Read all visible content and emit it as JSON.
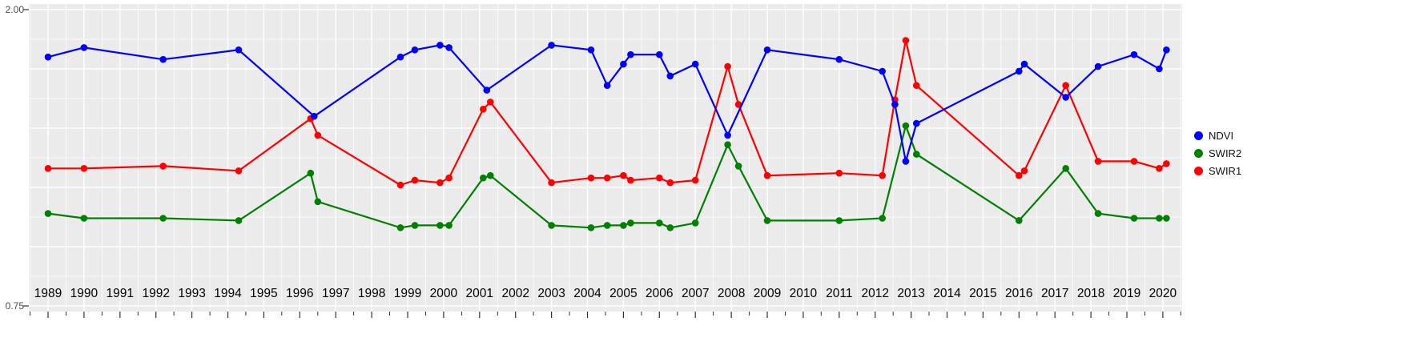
{
  "figure": {
    "background": "#FFFFFF",
    "panel_background": "#EBEBEB",
    "grid_color": "#FFFFFF",
    "tick_color": "#333333",
    "y_axis_text_color": "#4D4D4D",
    "x_axis_text_color": "#000000"
  },
  "chart_data": {
    "type": "line",
    "title": "",
    "xlabel": "",
    "ylabel": "",
    "ylim": [
      0.75,
      2.0
    ],
    "y_axis_labels": [
      "2.00",
      "0.75"
    ],
    "y_major_step": 0.25,
    "grid": true,
    "legend_position": "right",
    "x_ticks": [
      1989,
      1990,
      1991,
      1992,
      1993,
      1994,
      1995,
      1996,
      1997,
      1998,
      1999,
      2000,
      2001,
      2002,
      2003,
      2004,
      2005,
      2006,
      2007,
      2008,
      2009,
      2010,
      2011,
      2012,
      2013,
      2014,
      2015,
      2016,
      2017,
      2018,
      2019,
      2020
    ],
    "series": [
      {
        "name": "NDVI",
        "color": "#0000FF",
        "points": [
          [
            1989,
            1.8
          ],
          [
            1990,
            1.84
          ],
          [
            1992.2,
            1.79
          ],
          [
            1994.3,
            1.83
          ],
          [
            1996.4,
            1.55
          ],
          [
            1998.8,
            1.8
          ],
          [
            1999.2,
            1.83
          ],
          [
            1999.9,
            1.85
          ],
          [
            2000.15,
            1.84
          ],
          [
            2001.2,
            1.66
          ],
          [
            2003,
            1.85
          ],
          [
            2004.1,
            1.83
          ],
          [
            2004.55,
            1.68
          ],
          [
            2005,
            1.77
          ],
          [
            2005.2,
            1.81
          ],
          [
            2006,
            1.81
          ],
          [
            2006.3,
            1.72
          ],
          [
            2007,
            1.77
          ],
          [
            2007.9,
            1.47
          ],
          [
            2009,
            1.83
          ],
          [
            2011,
            1.79
          ],
          [
            2012.2,
            1.74
          ],
          [
            2012.55,
            1.6
          ],
          [
            2012.85,
            1.36
          ],
          [
            2013.15,
            1.52
          ],
          [
            2016,
            1.74
          ],
          [
            2016.15,
            1.77
          ],
          [
            2017.3,
            1.63
          ],
          [
            2018.2,
            1.76
          ],
          [
            2019.2,
            1.81
          ],
          [
            2019.9,
            1.75
          ],
          [
            2020.1,
            1.83
          ]
        ]
      },
      {
        "name": "SWIR2",
        "color": "#008000",
        "points": [
          [
            1989,
            1.14
          ],
          [
            1990,
            1.12
          ],
          [
            1992.2,
            1.12
          ],
          [
            1994.3,
            1.11
          ],
          [
            1996.3,
            1.31
          ],
          [
            1996.5,
            1.19
          ],
          [
            1998.8,
            1.08
          ],
          [
            1999.2,
            1.09
          ],
          [
            1999.9,
            1.09
          ],
          [
            2000.15,
            1.09
          ],
          [
            2001.1,
            1.29
          ],
          [
            2001.3,
            1.3
          ],
          [
            2003,
            1.09
          ],
          [
            2004.1,
            1.08
          ],
          [
            2004.55,
            1.09
          ],
          [
            2005,
            1.09
          ],
          [
            2005.2,
            1.1
          ],
          [
            2006,
            1.1
          ],
          [
            2006.3,
            1.08
          ],
          [
            2007,
            1.1
          ],
          [
            2007.9,
            1.43
          ],
          [
            2008.2,
            1.34
          ],
          [
            2009,
            1.11
          ],
          [
            2011,
            1.11
          ],
          [
            2012.2,
            1.12
          ],
          [
            2012.85,
            1.51
          ],
          [
            2013.15,
            1.39
          ],
          [
            2016,
            1.11
          ],
          [
            2017.3,
            1.33
          ],
          [
            2018.2,
            1.14
          ],
          [
            2019.2,
            1.12
          ],
          [
            2019.9,
            1.12
          ],
          [
            2020.1,
            1.12
          ]
        ]
      },
      {
        "name": "SWIR1",
        "color": "#FF0000",
        "points": [
          [
            1989,
            1.33
          ],
          [
            1990,
            1.33
          ],
          [
            1992.2,
            1.34
          ],
          [
            1994.3,
            1.32
          ],
          [
            1996.3,
            1.54
          ],
          [
            1996.5,
            1.47
          ],
          [
            1998.8,
            1.26
          ],
          [
            1999.2,
            1.28
          ],
          [
            1999.9,
            1.27
          ],
          [
            2000.15,
            1.29
          ],
          [
            2001.1,
            1.58
          ],
          [
            2001.3,
            1.61
          ],
          [
            2003,
            1.27
          ],
          [
            2004.1,
            1.29
          ],
          [
            2004.55,
            1.29
          ],
          [
            2005,
            1.3
          ],
          [
            2005.2,
            1.28
          ],
          [
            2006,
            1.29
          ],
          [
            2006.3,
            1.27
          ],
          [
            2007,
            1.28
          ],
          [
            2007.9,
            1.76
          ],
          [
            2008.2,
            1.6
          ],
          [
            2009,
            1.3
          ],
          [
            2011,
            1.31
          ],
          [
            2012.2,
            1.3
          ],
          [
            2012.55,
            1.62
          ],
          [
            2012.85,
            1.87
          ],
          [
            2013.15,
            1.68
          ],
          [
            2016,
            1.3
          ],
          [
            2016.15,
            1.32
          ],
          [
            2017.3,
            1.68
          ],
          [
            2018.2,
            1.36
          ],
          [
            2019.2,
            1.36
          ],
          [
            2019.9,
            1.33
          ],
          [
            2020.1,
            1.35
          ]
        ]
      }
    ]
  }
}
